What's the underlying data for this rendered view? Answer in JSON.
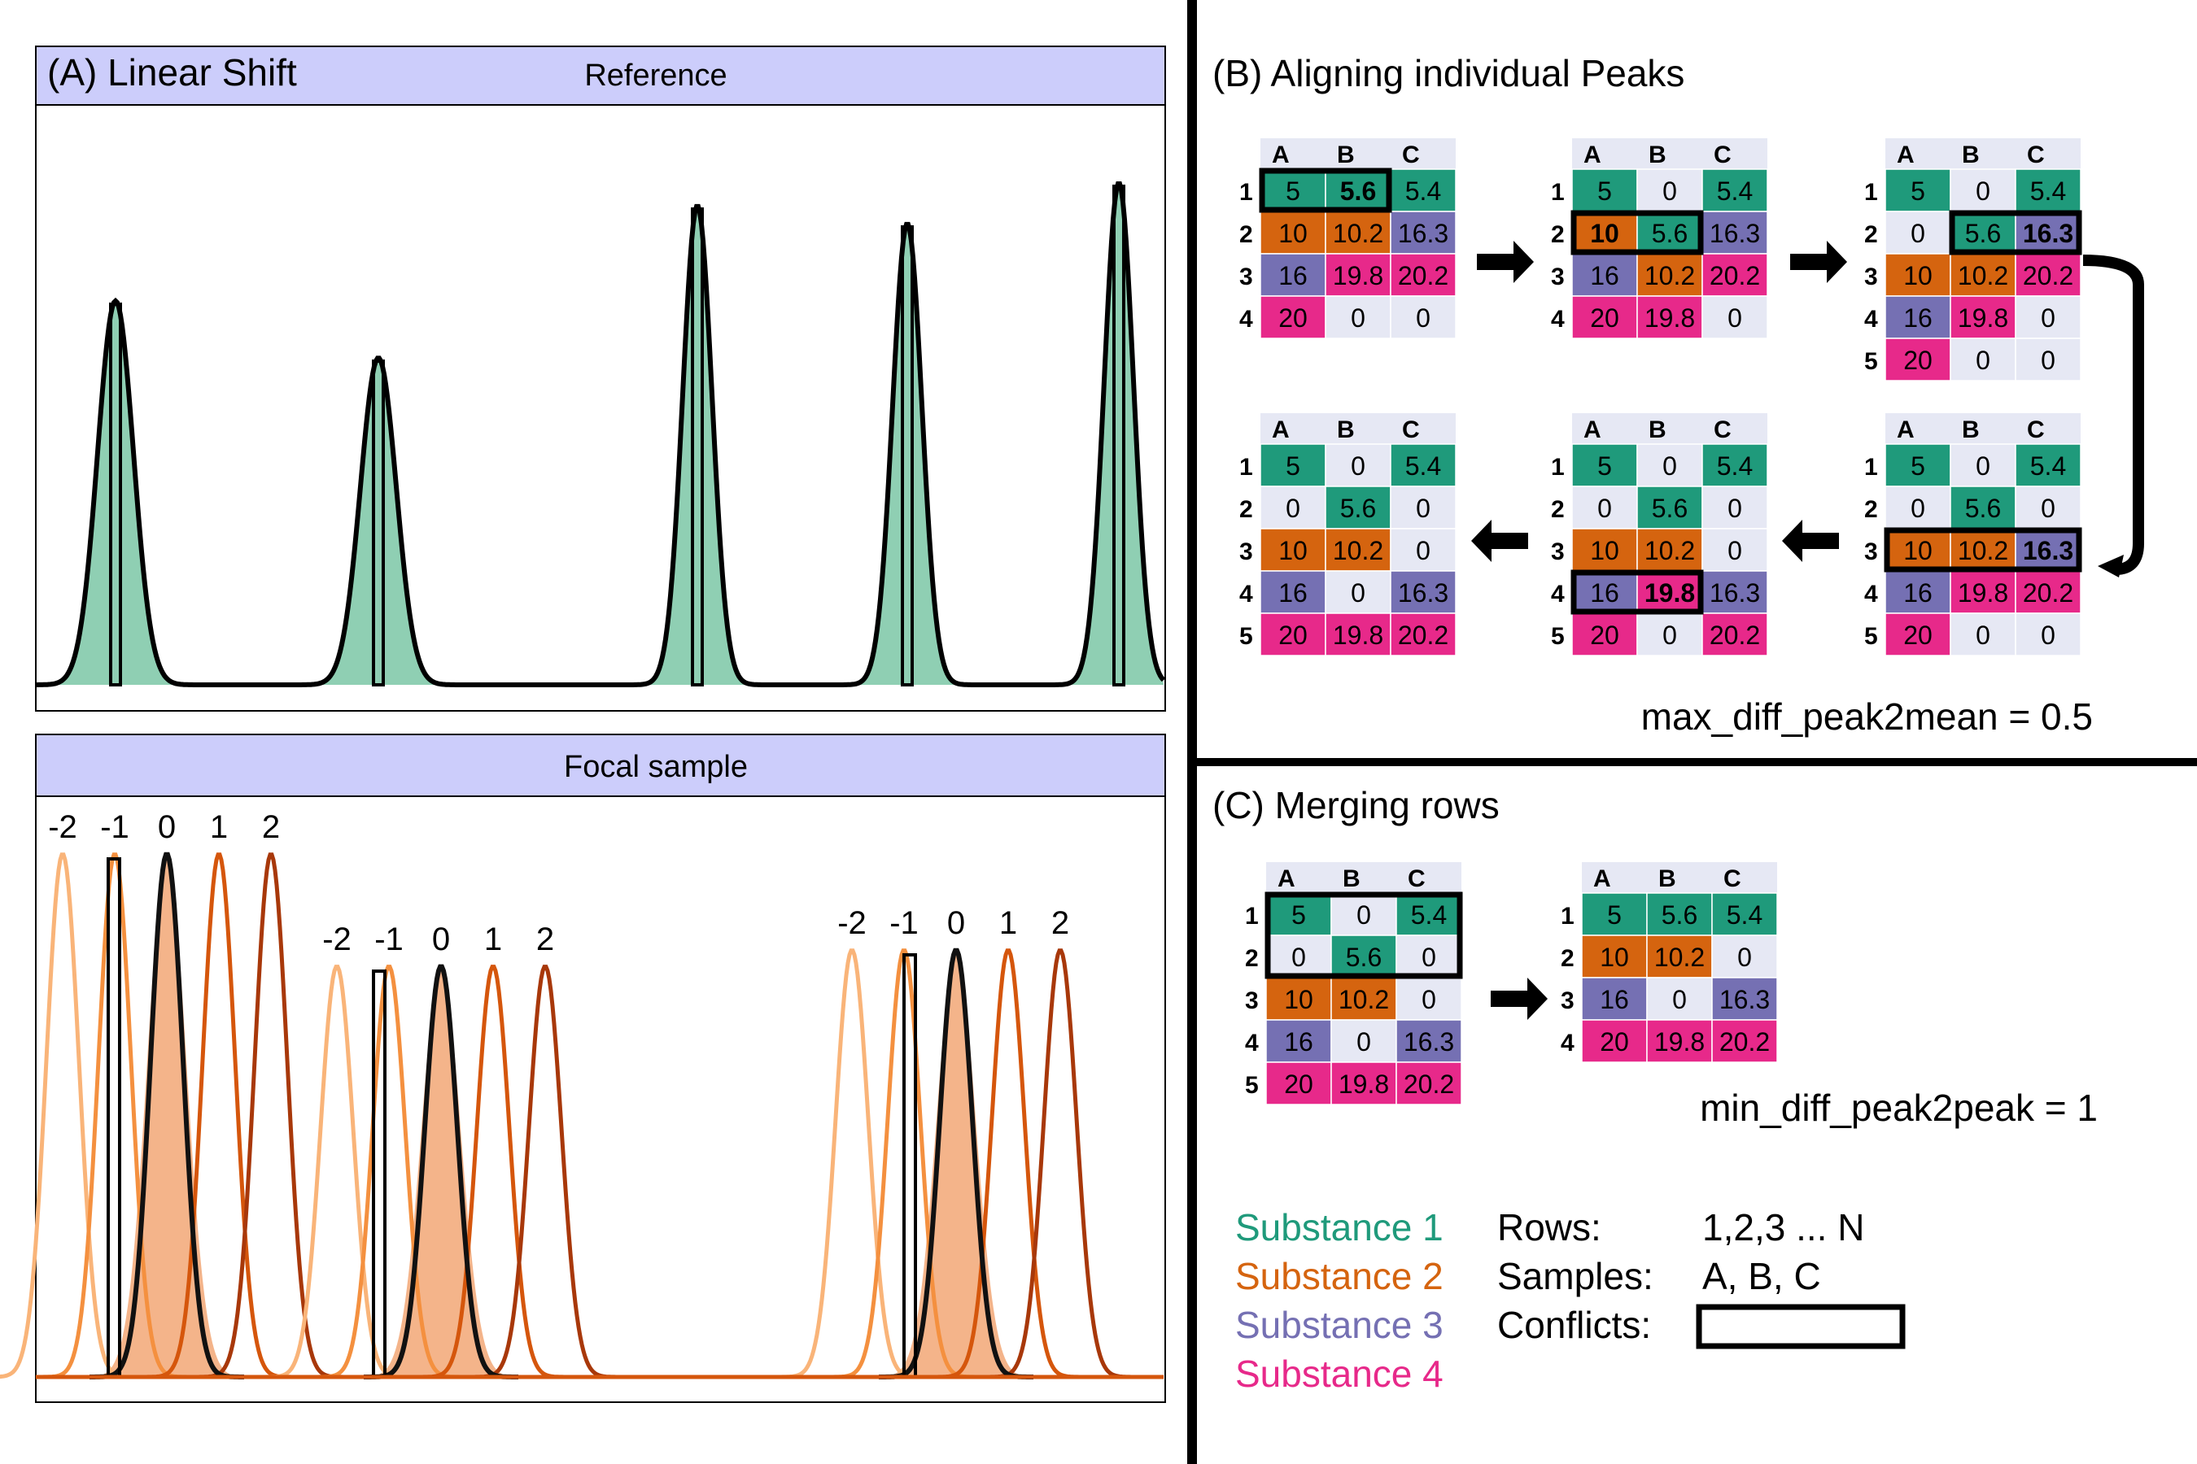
{
  "panel_a": {
    "title": "(A) Linear Shift",
    "reference_label": "Reference",
    "focal_label": "Focal sample",
    "shift_labels": [
      "-2",
      "-1",
      "0",
      "1",
      "2"
    ]
  },
  "panel_b": {
    "title": "(B) Aligning individual Peaks",
    "param": "max_diff_peak2mean = 0.5"
  },
  "panel_c": {
    "title": "(C) Merging rows",
    "param": "min_diff_peak2peak = 1"
  },
  "columns": [
    "A",
    "B",
    "C"
  ],
  "colors": {
    "s1": "#1f9a7b",
    "s2": "#d5640f",
    "s3": "#7570b3",
    "s4": "#e7298a",
    "empty": "#e6e8f4",
    "strip": "#cccdfb",
    "ref_fill": "#8fcfb3",
    "focal_fill": "#f4b48a",
    "shift_colors": [
      "#f9b479",
      "#f4903f",
      "#111111",
      "#d5560c",
      "#a8380a"
    ]
  },
  "tables": {
    "b1": [
      [
        [
          "5",
          1
        ],
        [
          "5.6",
          1
        ],
        [
          "5.4",
          1
        ]
      ],
      [
        [
          "10",
          2
        ],
        [
          "10.2",
          2
        ],
        [
          "16.3",
          3
        ]
      ],
      [
        [
          "16",
          3
        ],
        [
          "19.8",
          4
        ],
        [
          "20.2",
          4
        ]
      ],
      [
        [
          "20",
          4
        ],
        [
          "0",
          0
        ],
        [
          "0",
          0
        ]
      ]
    ],
    "b2": [
      [
        [
          "5",
          1
        ],
        [
          "0",
          0
        ],
        [
          "5.4",
          1
        ]
      ],
      [
        [
          "10",
          2
        ],
        [
          "5.6",
          1
        ],
        [
          "16.3",
          3
        ]
      ],
      [
        [
          "16",
          3
        ],
        [
          "10.2",
          2
        ],
        [
          "20.2",
          4
        ]
      ],
      [
        [
          "20",
          4
        ],
        [
          "19.8",
          4
        ],
        [
          "0",
          0
        ]
      ]
    ],
    "b3": [
      [
        [
          "5",
          1
        ],
        [
          "0",
          0
        ],
        [
          "5.4",
          1
        ]
      ],
      [
        [
          "0",
          0
        ],
        [
          "5.6",
          1
        ],
        [
          "16.3",
          3
        ]
      ],
      [
        [
          "10",
          2
        ],
        [
          "10.2",
          2
        ],
        [
          "20.2",
          4
        ]
      ],
      [
        [
          "16",
          3
        ],
        [
          "19.8",
          4
        ],
        [
          "0",
          0
        ]
      ],
      [
        [
          "20",
          4
        ],
        [
          "0",
          0
        ],
        [
          "0",
          0
        ]
      ]
    ],
    "b4": [
      [
        [
          "5",
          1
        ],
        [
          "0",
          0
        ],
        [
          "5.4",
          1
        ]
      ],
      [
        [
          "0",
          0
        ],
        [
          "5.6",
          1
        ],
        [
          "0",
          0
        ]
      ],
      [
        [
          "10",
          2
        ],
        [
          "10.2",
          2
        ],
        [
          "16.3",
          3
        ]
      ],
      [
        [
          "16",
          3
        ],
        [
          "19.8",
          4
        ],
        [
          "20.2",
          4
        ]
      ],
      [
        [
          "20",
          4
        ],
        [
          "0",
          0
        ],
        [
          "0",
          0
        ]
      ]
    ],
    "b5": [
      [
        [
          "5",
          1
        ],
        [
          "0",
          0
        ],
        [
          "5.4",
          1
        ]
      ],
      [
        [
          "0",
          0
        ],
        [
          "5.6",
          1
        ],
        [
          "0",
          0
        ]
      ],
      [
        [
          "10",
          2
        ],
        [
          "10.2",
          2
        ],
        [
          "0",
          0
        ]
      ],
      [
        [
          "16",
          3
        ],
        [
          "19.8",
          4
        ],
        [
          "16.3",
          3
        ]
      ],
      [
        [
          "20",
          4
        ],
        [
          "0",
          0
        ],
        [
          "20.2",
          4
        ]
      ]
    ],
    "b6": [
      [
        [
          "5",
          1
        ],
        [
          "0",
          0
        ],
        [
          "5.4",
          1
        ]
      ],
      [
        [
          "0",
          0
        ],
        [
          "5.6",
          1
        ],
        [
          "0",
          0
        ]
      ],
      [
        [
          "10",
          2
        ],
        [
          "10.2",
          2
        ],
        [
          "0",
          0
        ]
      ],
      [
        [
          "16",
          3
        ],
        [
          "0",
          0
        ],
        [
          "16.3",
          3
        ]
      ],
      [
        [
          "20",
          4
        ],
        [
          "19.8",
          4
        ],
        [
          "20.2",
          4
        ]
      ]
    ],
    "c1": [
      [
        [
          "5",
          1
        ],
        [
          "0",
          0
        ],
        [
          "5.4",
          1
        ]
      ],
      [
        [
          "0",
          0
        ],
        [
          "5.6",
          1
        ],
        [
          "0",
          0
        ]
      ],
      [
        [
          "10",
          2
        ],
        [
          "10.2",
          2
        ],
        [
          "0",
          0
        ]
      ],
      [
        [
          "16",
          3
        ],
        [
          "0",
          0
        ],
        [
          "16.3",
          3
        ]
      ],
      [
        [
          "20",
          4
        ],
        [
          "19.8",
          4
        ],
        [
          "20.2",
          4
        ]
      ]
    ],
    "c2": [
      [
        [
          "5",
          1
        ],
        [
          "5.6",
          1
        ],
        [
          "5.4",
          1
        ]
      ],
      [
        [
          "10",
          2
        ],
        [
          "10.2",
          2
        ],
        [
          "0",
          0
        ]
      ],
      [
        [
          "16",
          3
        ],
        [
          "0",
          0
        ],
        [
          "16.3",
          3
        ]
      ],
      [
        [
          "20",
          4
        ],
        [
          "19.8",
          4
        ],
        [
          "20.2",
          4
        ]
      ]
    ]
  },
  "legend": {
    "substances": [
      "Substance 1",
      "Substance 2",
      "Substance 3",
      "Substance 4"
    ],
    "rows_label": "Rows:",
    "rows_value": "1,2,3 ... N",
    "samples_label": "Samples:",
    "samples_value": "A, B, C",
    "conflicts_label": "Conflicts:"
  }
}
